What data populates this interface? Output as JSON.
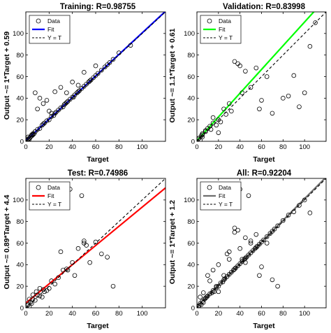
{
  "chart_data": [
    {
      "type": "scatter",
      "title": "Training: R=0.98755",
      "xlabel": "Target",
      "ylabel": "Output ~= 1*Target + 0.59",
      "xlim": [
        0,
        120
      ],
      "ylim": [
        0,
        120
      ],
      "xticks": [
        0,
        20,
        40,
        60,
        80,
        100
      ],
      "yticks": [
        0,
        20,
        40,
        60,
        80,
        100
      ],
      "legend_position": "top-left",
      "series": [
        {
          "name": "Data",
          "kind": "points",
          "color": "#000000",
          "x": [
            1,
            2,
            3,
            4,
            5,
            6,
            7,
            8,
            2,
            3,
            5,
            6,
            8,
            10,
            12,
            14,
            15,
            16,
            18,
            20,
            22,
            24,
            25,
            26,
            28,
            30,
            32,
            33,
            34,
            35,
            36,
            38,
            40,
            41,
            42,
            44,
            45,
            46,
            48,
            50,
            52,
            54,
            55,
            56,
            58,
            60,
            62,
            65,
            68,
            70,
            72,
            75,
            80,
            90,
            10,
            12,
            15,
            8,
            20,
            30,
            25,
            40,
            50,
            60,
            18,
            22,
            35,
            45
          ],
          "y": [
            1,
            2,
            3,
            4,
            6,
            6,
            7,
            9,
            4,
            2,
            5,
            7,
            9,
            11,
            12,
            15,
            16,
            17,
            19,
            20,
            23,
            24,
            26,
            27,
            29,
            31,
            32,
            34,
            35,
            36,
            37,
            39,
            41,
            41,
            43,
            45,
            46,
            47,
            49,
            51,
            53,
            55,
            56,
            57,
            59,
            61,
            63,
            66,
            69,
            71,
            73,
            76,
            82,
            89,
            30,
            40,
            35,
            45,
            28,
            50,
            46,
            55,
            64,
            70,
            38,
            26,
            45,
            52
          ]
        },
        {
          "name": "Fit",
          "kind": "line",
          "color": "#0000ff",
          "slope": 1.0,
          "intercept": 0.59
        },
        {
          "name": "Y = T",
          "kind": "identity",
          "color": "#000000"
        }
      ]
    },
    {
      "type": "scatter",
      "title": "Validation: R=0.83998",
      "xlabel": "Target",
      "ylabel": "Output ~= 1.1*Target + 0.61",
      "xlim": [
        0,
        120
      ],
      "ylim": [
        0,
        120
      ],
      "xticks": [
        0,
        20,
        40,
        60,
        80,
        100
      ],
      "yticks": [
        0,
        20,
        40,
        60,
        80,
        100
      ],
      "legend_position": "top-left",
      "series": [
        {
          "name": "Data",
          "kind": "points",
          "color": "#000000",
          "x": [
            1,
            2,
            3,
            4,
            5,
            5,
            8,
            10,
            12,
            13,
            15,
            18,
            20,
            22,
            25,
            27,
            30,
            32,
            35,
            38,
            40,
            42,
            45,
            50,
            55,
            58,
            60,
            65,
            70,
            80,
            85,
            90,
            95,
            100,
            105,
            110,
            5,
            8,
            15,
            20
          ],
          "y": [
            2,
            3,
            1,
            5,
            4,
            7,
            9,
            12,
            14,
            11,
            17,
            15,
            20,
            18,
            30,
            25,
            35,
            28,
            74,
            72,
            70,
            45,
            65,
            50,
            68,
            30,
            38,
            60,
            26,
            40,
            42,
            61,
            32,
            45,
            88,
            110,
            6,
            10,
            22,
            8
          ]
        },
        {
          "name": "Fit",
          "kind": "line",
          "color": "#00ff00",
          "slope": 1.1,
          "intercept": 0.61
        },
        {
          "name": "Y = T",
          "kind": "identity",
          "color": "#000000"
        }
      ]
    },
    {
      "type": "scatter",
      "title": "Test: R=0.74986",
      "xlabel": "Target",
      "ylabel": "Output ~= 0.89*Target + 4.4",
      "xlim": [
        0,
        120
      ],
      "ylim": [
        0,
        120
      ],
      "xticks": [
        0,
        20,
        40,
        60,
        80,
        100
      ],
      "yticks": [
        0,
        20,
        40,
        60,
        80,
        100
      ],
      "legend_position": "top-left",
      "series": [
        {
          "name": "Data",
          "kind": "points",
          "color": "#000000",
          "x": [
            1,
            2,
            3,
            4,
            5,
            6,
            8,
            10,
            12,
            14,
            15,
            16,
            18,
            20,
            22,
            25,
            28,
            30,
            32,
            35,
            38,
            40,
            42,
            45,
            48,
            50,
            52,
            55,
            60,
            65,
            70,
            75,
            3,
            6,
            9,
            12,
            36,
            50
          ],
          "y": [
            2,
            3,
            1,
            5,
            4,
            8,
            7,
            12,
            11,
            10,
            17,
            15,
            16,
            18,
            25,
            22,
            28,
            52,
            35,
            36,
            110,
            42,
            30,
            55,
            104,
            60,
            58,
            42,
            61,
            50,
            47,
            20,
            8,
            12,
            15,
            18,
            35,
            62
          ]
        },
        {
          "name": "Fit",
          "kind": "line",
          "color": "#ff0000",
          "slope": 0.89,
          "intercept": 4.4
        },
        {
          "name": "Y = T",
          "kind": "identity",
          "color": "#000000"
        }
      ]
    },
    {
      "type": "scatter",
      "title": "All: R=0.92204",
      "xlabel": "Target",
      "ylabel": "Output ~= 1*Target + 1.2",
      "xlim": [
        0,
        120
      ],
      "ylim": [
        0,
        120
      ],
      "xticks": [
        0,
        20,
        40,
        60,
        80,
        100
      ],
      "yticks": [
        0,
        20,
        40,
        60,
        80,
        100
      ],
      "legend_position": "top-left",
      "series": [
        {
          "name": "Data",
          "kind": "points",
          "color": "#000000",
          "x": [
            1,
            2,
            3,
            4,
            5,
            6,
            7,
            8,
            9,
            10,
            12,
            14,
            15,
            16,
            18,
            20,
            22,
            24,
            25,
            26,
            28,
            30,
            32,
            34,
            35,
            36,
            38,
            40,
            42,
            44,
            45,
            46,
            48,
            50,
            52,
            54,
            55,
            56,
            58,
            60,
            62,
            65,
            68,
            70,
            72,
            75,
            80,
            85,
            90,
            95,
            100,
            105,
            3,
            6,
            10,
            12,
            15,
            18,
            20,
            25,
            28,
            30,
            35,
            38,
            40,
            42,
            45,
            48,
            50,
            55,
            58,
            60,
            65,
            70,
            75,
            40,
            45,
            50,
            30,
            35,
            20
          ],
          "y": [
            1,
            2,
            4,
            3,
            6,
            5,
            8,
            9,
            10,
            11,
            13,
            14,
            16,
            15,
            19,
            20,
            23,
            24,
            26,
            27,
            29,
            31,
            33,
            35,
            36,
            37,
            39,
            41,
            43,
            45,
            46,
            47,
            49,
            51,
            53,
            55,
            56,
            57,
            59,
            61,
            63,
            66,
            69,
            71,
            73,
            76,
            81,
            86,
            89,
            95,
            100,
            88,
            10,
            14,
            30,
            25,
            35,
            20,
            40,
            30,
            50,
            52,
            74,
            72,
            110,
            45,
            65,
            104,
            60,
            68,
            30,
            38,
            60,
            26,
            20,
            55,
            42,
            62,
            45,
            70,
            15
          ]
        },
        {
          "name": "Fit",
          "kind": "line",
          "color": "#6e6e6e",
          "slope": 1.0,
          "intercept": 1.2
        },
        {
          "name": "Y = T",
          "kind": "identity",
          "color": "#000000"
        }
      ]
    }
  ]
}
